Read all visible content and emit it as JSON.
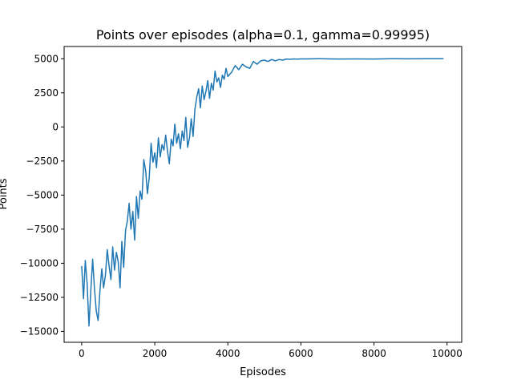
{
  "chart_data": {
    "type": "line",
    "title": "Points over episodes (alpha=0.1, gamma=0.99995)",
    "xlabel": "Episodes",
    "ylabel": "Points",
    "xlim": [
      -480,
      10400
    ],
    "ylim": [
      -15800,
      5900
    ],
    "xticks": [
      0,
      2000,
      4000,
      6000,
      8000,
      10000
    ],
    "xtick_labels": [
      "0",
      "2000",
      "4000",
      "6000",
      "8000",
      "10000"
    ],
    "yticks": [
      -15000,
      -12500,
      -10000,
      -7500,
      -5000,
      -2500,
      0,
      2500,
      5000
    ],
    "ytick_labels": [
      "−15000",
      "−12500",
      "−10000",
      "−7500",
      "−5000",
      "−2500",
      "0",
      "2500",
      "5000"
    ],
    "grid": false,
    "legend": "none",
    "series": [
      {
        "color": "#1f77b4",
        "x": [
          0,
          50,
          100,
          150,
          200,
          250,
          300,
          350,
          400,
          450,
          500,
          550,
          600,
          650,
          700,
          750,
          800,
          850,
          900,
          950,
          1000,
          1050,
          1100,
          1150,
          1200,
          1250,
          1300,
          1350,
          1400,
          1450,
          1500,
          1550,
          1600,
          1650,
          1700,
          1750,
          1800,
          1850,
          1900,
          1950,
          2000,
          2050,
          2100,
          2150,
          2200,
          2250,
          2300,
          2350,
          2400,
          2450,
          2500,
          2550,
          2600,
          2650,
          2700,
          2750,
          2800,
          2850,
          2900,
          2950,
          3000,
          3050,
          3100,
          3150,
          3200,
          3250,
          3300,
          3350,
          3400,
          3450,
          3500,
          3550,
          3600,
          3650,
          3700,
          3750,
          3800,
          3850,
          3900,
          3950,
          4000,
          4100,
          4200,
          4300,
          4400,
          4500,
          4600,
          4700,
          4800,
          4900,
          5000,
          5100,
          5200,
          5300,
          5400,
          5500,
          5600,
          5700,
          5800,
          5900,
          6000,
          6500,
          7000,
          7500,
          8000,
          8500,
          9000,
          9500,
          9900
        ],
        "y": [
          -10200,
          -12600,
          -9800,
          -11500,
          -14600,
          -12000,
          -9700,
          -11800,
          -13500,
          -14200,
          -12000,
          -10400,
          -11800,
          -10900,
          -9000,
          -10200,
          -11200,
          -8800,
          -10500,
          -9200,
          -9900,
          -11800,
          -8400,
          -10300,
          -7600,
          -6900,
          -5600,
          -7500,
          -6200,
          -8300,
          -5100,
          -6700,
          -4700,
          -5300,
          -2400,
          -3200,
          -4900,
          -3700,
          -1200,
          -2600,
          -1900,
          -3000,
          -800,
          -2200,
          -1300,
          -1700,
          -600,
          -1800,
          -2700,
          -900,
          -1400,
          200,
          -1200,
          -500,
          -1600,
          -300,
          -1000,
          700,
          -1500,
          -800,
          600,
          -700,
          1300,
          2200,
          2800,
          1400,
          3000,
          2000,
          2600,
          3400,
          2100,
          3200,
          2700,
          4100,
          3300,
          3600,
          2900,
          3800,
          3500,
          4300,
          3700,
          4000,
          4500,
          4200,
          4600,
          4400,
          4300,
          4800,
          4600,
          4850,
          4900,
          4800,
          4950,
          4850,
          4950,
          4900,
          4980,
          4960,
          4990,
          4970,
          4990,
          5000,
          4980,
          4990,
          4985,
          5000,
          4995,
          4998,
          5000
        ]
      }
    ]
  }
}
